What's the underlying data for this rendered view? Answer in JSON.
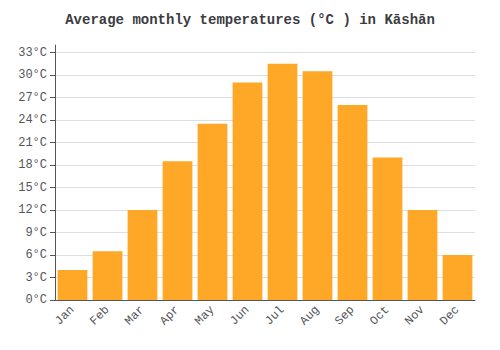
{
  "chart_data": {
    "type": "bar",
    "title": "Average monthly temperatures (°C ) in Kāshān",
    "categories": [
      "Jan",
      "Feb",
      "Mar",
      "Apr",
      "May",
      "Jun",
      "Jul",
      "Aug",
      "Sep",
      "Oct",
      "Nov",
      "Dec"
    ],
    "values": [
      4,
      6.5,
      12,
      18.5,
      23.5,
      29,
      31.5,
      30.5,
      26,
      19,
      12,
      6
    ],
    "color": "#FFA726",
    "ylim": [
      0,
      34
    ],
    "yticks": [
      {
        "value": 0,
        "label": "0°C"
      },
      {
        "value": 3,
        "label": "3°C"
      },
      {
        "value": 6,
        "label": "6°C"
      },
      {
        "value": 9,
        "label": "9°C"
      },
      {
        "value": 12,
        "label": "12°C"
      },
      {
        "value": 15,
        "label": "15°C"
      },
      {
        "value": 18,
        "label": "18°C"
      },
      {
        "value": 21,
        "label": "21°C"
      },
      {
        "value": 24,
        "label": "24°C"
      },
      {
        "value": 27,
        "label": "27°C"
      },
      {
        "value": 30,
        "label": "30°C"
      },
      {
        "value": 33,
        "label": "33°C"
      }
    ],
    "grid": true
  }
}
